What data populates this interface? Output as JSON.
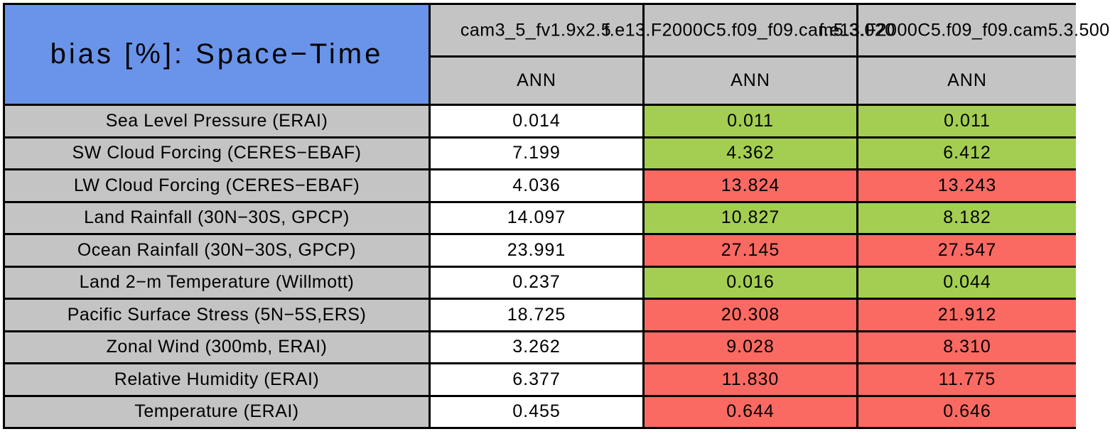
{
  "chart_data": {
    "type": "table",
    "title": "bias [%]: Space−Time",
    "metric": "bias",
    "units": "%",
    "statistic": "Space−Time",
    "columns": [
      "cam3_5_fv1.9x2.5",
      "f.e13.F2000C5.f09_f09.cam5.3.020",
      "f.e13.F2000C5.f09_f09.cam5.3.500"
    ],
    "season_row": [
      "ANN",
      "ANN",
      "ANN"
    ],
    "rows": [
      {
        "label": "Sea Level Pressure (ERAI)",
        "values": [
          "0.014",
          "0.011",
          "0.011"
        ],
        "states": [
          "neutral",
          "better",
          "better"
        ]
      },
      {
        "label": "SW Cloud Forcing (CERES−EBAF)",
        "values": [
          "7.199",
          "4.362",
          "6.412"
        ],
        "states": [
          "neutral",
          "better",
          "better"
        ]
      },
      {
        "label": "LW Cloud Forcing (CERES−EBAF)",
        "values": [
          "4.036",
          "13.824",
          "13.243"
        ],
        "states": [
          "neutral",
          "worse",
          "worse"
        ]
      },
      {
        "label": "Land Rainfall (30N−30S, GPCP)",
        "values": [
          "14.097",
          "10.827",
          "8.182"
        ],
        "states": [
          "neutral",
          "better",
          "better"
        ]
      },
      {
        "label": "Ocean Rainfall (30N−30S, GPCP)",
        "values": [
          "23.991",
          "27.145",
          "27.547"
        ],
        "states": [
          "neutral",
          "worse",
          "worse"
        ]
      },
      {
        "label": "Land 2−m Temperature (Willmott)",
        "values": [
          "0.237",
          "0.016",
          "0.044"
        ],
        "states": [
          "neutral",
          "better",
          "better"
        ]
      },
      {
        "label": "Pacific Surface Stress (5N−5S,ERS)",
        "values": [
          "18.725",
          "20.308",
          "21.912"
        ],
        "states": [
          "neutral",
          "worse",
          "worse"
        ]
      },
      {
        "label": "Zonal Wind (300mb, ERAI)",
        "values": [
          "3.262",
          "9.028",
          "8.310"
        ],
        "states": [
          "neutral",
          "worse",
          "worse"
        ]
      },
      {
        "label": "Relative Humidity (ERAI)",
        "values": [
          "6.377",
          "11.830",
          "11.775"
        ],
        "states": [
          "neutral",
          "worse",
          "worse"
        ]
      },
      {
        "label": "Temperature (ERAI)",
        "values": [
          "0.455",
          "0.644",
          "0.646"
        ],
        "states": [
          "neutral",
          "worse",
          "worse"
        ]
      }
    ],
    "cell_color_meaning": {
      "better": "improved vs first column",
      "worse": "degraded vs first column",
      "neutral": "reference case"
    }
  },
  "colors": {
    "header_blue": "#6994E9",
    "cell_gray": "#C4C4C4",
    "better": "#A4CE52",
    "worse": "#FA6A62",
    "neutral": "#FFFFFF",
    "border": "#000000"
  }
}
